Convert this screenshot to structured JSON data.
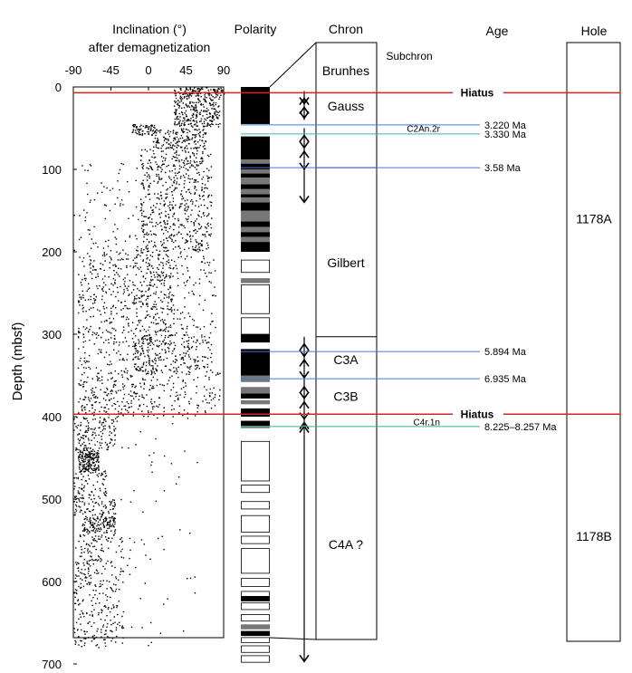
{
  "chart_data": {
    "type": "scatter",
    "xlabel_line1": "Inclination (°)",
    "xlabel_line2": "after demagnetization",
    "ylabel": "Depth (mbsf)",
    "xlim": [
      -90,
      90
    ],
    "ylim": [
      0,
      700
    ],
    "x_ticks": [
      -90,
      -45,
      0,
      45,
      90
    ],
    "x_tick_labels": [
      "-90",
      "-45",
      "0",
      "45",
      "90"
    ],
    "y_ticks": [
      0,
      100,
      200,
      300,
      400,
      500,
      600,
      700
    ],
    "y_tick_labels": [
      "0",
      "100",
      "200",
      "300",
      "400",
      "500",
      "600",
      "700"
    ],
    "inclination_clusters": [
      {
        "d0": 0,
        "d1": 10,
        "xmin": 30,
        "xmax": 90,
        "n": 120
      },
      {
        "d0": 10,
        "d1": 48,
        "xmin": 30,
        "xmax": 85,
        "n": 260
      },
      {
        "d0": 45,
        "d1": 58,
        "xmin": -20,
        "xmax": 10,
        "n": 70
      },
      {
        "d0": 50,
        "d1": 75,
        "xmin": 5,
        "xmax": 70,
        "n": 170
      },
      {
        "d0": 75,
        "d1": 200,
        "xmin": -10,
        "xmax": 75,
        "n": 520
      },
      {
        "d0": 85,
        "d1": 200,
        "xmin": -90,
        "xmax": 60,
        "n": 160
      },
      {
        "d0": 200,
        "d1": 300,
        "xmin": -85,
        "xmax": 30,
        "n": 440
      },
      {
        "d0": 200,
        "d1": 300,
        "xmin": -20,
        "xmax": 80,
        "n": 160
      },
      {
        "d0": 300,
        "d1": 345,
        "xmin": -20,
        "xmax": 75,
        "n": 260
      },
      {
        "d0": 300,
        "d1": 400,
        "xmin": -85,
        "xmax": 10,
        "n": 240
      },
      {
        "d0": 345,
        "d1": 400,
        "xmin": -85,
        "xmax": 85,
        "n": 220
      },
      {
        "d0": 400,
        "d1": 440,
        "xmin": -90,
        "xmax": -40,
        "n": 140
      },
      {
        "d0": 440,
        "d1": 465,
        "xmin": -85,
        "xmax": -60,
        "n": 180
      },
      {
        "d0": 465,
        "d1": 500,
        "xmin": -90,
        "xmax": -50,
        "n": 90
      },
      {
        "d0": 500,
        "d1": 520,
        "xmin": -90,
        "xmax": -40,
        "n": 70
      },
      {
        "d0": 520,
        "d1": 540,
        "xmin": -80,
        "xmax": -40,
        "n": 130
      },
      {
        "d0": 540,
        "d1": 680,
        "xmin": -90,
        "xmax": -30,
        "n": 330
      },
      {
        "d0": 400,
        "d1": 680,
        "xmin": -40,
        "xmax": 60,
        "n": 60
      }
    ],
    "polarity_header": "Polarity",
    "polarity_normal_bands": [
      [
        0,
        45
      ],
      [
        60,
        88
      ],
      [
        93,
        100
      ],
      [
        105,
        110
      ],
      [
        118,
        124
      ],
      [
        130,
        134
      ],
      [
        140,
        150
      ],
      [
        163,
        170
      ],
      [
        176,
        182
      ],
      [
        188,
        200
      ],
      [
        300,
        310
      ],
      [
        318,
        350
      ],
      [
        372,
        378
      ],
      [
        390,
        400
      ],
      [
        405,
        411
      ],
      [
        618,
        624
      ],
      [
        660,
        666
      ]
    ],
    "polarity_gray_bands": [
      [
        88,
        93
      ],
      [
        100,
        105
      ],
      [
        110,
        118
      ],
      [
        124,
        130
      ],
      [
        134,
        140
      ],
      [
        150,
        163
      ],
      [
        170,
        176
      ],
      [
        182,
        188
      ],
      [
        232,
        238
      ],
      [
        260,
        266
      ],
      [
        262,
        268
      ],
      [
        350,
        358
      ],
      [
        364,
        372
      ],
      [
        380,
        385
      ],
      [
        411,
        414
      ],
      [
        652,
        658
      ]
    ],
    "polarity_reversed_outlines": [
      [
        210,
        225
      ],
      [
        240,
        275
      ],
      [
        280,
        300
      ],
      [
        430,
        478
      ],
      [
        483,
        492
      ],
      [
        503,
        512
      ],
      [
        520,
        540
      ],
      [
        545,
        554
      ],
      [
        560,
        590
      ],
      [
        596,
        606
      ],
      [
        612,
        618
      ],
      [
        626,
        634
      ],
      [
        640,
        648
      ],
      [
        668,
        674
      ],
      [
        678,
        686
      ],
      [
        690,
        698
      ]
    ],
    "chron_header": "Chron",
    "subchron_header": "Subchron",
    "chrons": [
      {
        "name": "Brunhes",
        "top": 0,
        "bottom": 7
      },
      {
        "name": "Gauss",
        "top": 7,
        "bottom": 98
      },
      {
        "name": "Gilbert",
        "top": 98,
        "bottom": 303
      },
      {
        "name": "C3A",
        "top": 303,
        "bottom": 353
      },
      {
        "name": "C3B",
        "top": 353,
        "bottom": 400
      },
      {
        "name": "C4A ?",
        "top": 400,
        "bottom": 700
      }
    ],
    "chron_label_depths": {
      "Brunhes": -20,
      "Gauss": 23,
      "Gilbert": 213,
      "C3A": 331,
      "C3B": 375,
      "C4A ?": 555
    },
    "chron_dividers": [
      98,
      303
    ],
    "age_header": "Age",
    "age_tie_lines": [
      {
        "depth": 46,
        "label": "3.220 Ma",
        "color": "#3f7bd6"
      },
      {
        "depth": 57,
        "label": "3.330 Ma",
        "color": "#2bb3c7"
      },
      {
        "depth": 98,
        "label": "3.58 Ma",
        "color": "#3f7bd6"
      },
      {
        "depth": 321,
        "label": "5.894 Ma",
        "color": "#3f7bd6"
      },
      {
        "depth": 354,
        "label": "6.935 Ma",
        "color": "#3f7bd6"
      },
      {
        "depth": 412,
        "label": "8.225–8.257 Ma",
        "color": "#3bb08f"
      }
    ],
    "subchron_labels": [
      {
        "depth": 51,
        "label": "C2An.2r"
      },
      {
        "depth": 407,
        "label": "C4r.1n"
      }
    ],
    "hiatus_lines": [
      {
        "depth": 7,
        "label": "Hiatus",
        "color": "#e02020"
      },
      {
        "depth": 397,
        "label": "Hiatus",
        "color": "#e02020"
      }
    ],
    "arrow_markers": [
      {
        "type": "double",
        "top": 5,
        "bottom": 40
      },
      {
        "type": "double",
        "top": 50,
        "bottom": 102
      },
      {
        "type": "single-down",
        "top": 102,
        "bottom": 140
      },
      {
        "type": "double",
        "top": 303,
        "bottom": 355
      },
      {
        "type": "double",
        "top": 355,
        "bottom": 405
      },
      {
        "type": "up",
        "top": 405,
        "bottom": 420
      },
      {
        "type": "single-down",
        "top": 420,
        "bottom": 697
      }
    ],
    "hole_header": "Hole",
    "holes": [
      {
        "name": "1178A",
        "top": 0,
        "bottom": 397,
        "label_depth": 160
      },
      {
        "name": "1178B",
        "top": 397,
        "bottom": 700,
        "label_depth": 545
      }
    ]
  }
}
